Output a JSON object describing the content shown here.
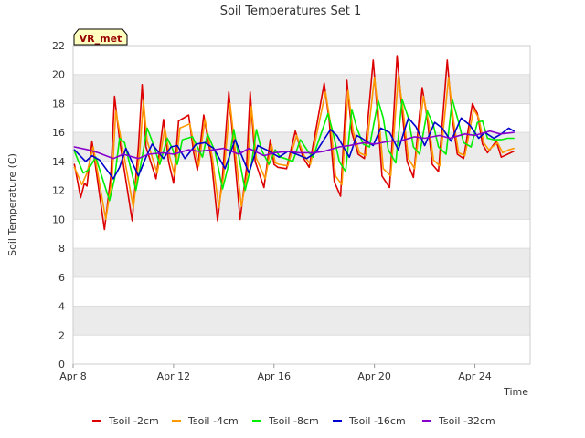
{
  "chart_data": {
    "type": "line",
    "title": "Soil Temperatures Set 1",
    "xlabel": "Time",
    "ylabel": "Soil Temperature (C)",
    "badge": "VR_met",
    "ylim": [
      0,
      22
    ],
    "yticks": [
      0,
      2,
      4,
      6,
      8,
      10,
      12,
      14,
      16,
      18,
      20,
      22
    ],
    "xlim": [
      0,
      18.2
    ],
    "xtick_labels": [
      {
        "x": 0,
        "label": "Apr 8"
      },
      {
        "x": 4,
        "label": "Apr 12"
      },
      {
        "x": 8,
        "label": "Apr 16"
      },
      {
        "x": 12,
        "label": "Apr 20"
      },
      {
        "x": 16,
        "label": "Apr 24"
      }
    ],
    "x_unit": "days after Apr 8",
    "grid": true,
    "legend": "bottom",
    "colors": {
      "background_band": "#ebebeb",
      "badge_fill": "#ffffc0",
      "badge_text": "#990000"
    },
    "series": [
      {
        "name": "Tsoil -2cm",
        "color": "#dd0000",
        "x": [
          0.05,
          0.3,
          0.45,
          0.55,
          0.75,
          1.25,
          1.5,
          1.65,
          1.85,
          2.35,
          2.6,
          2.75,
          2.9,
          3.3,
          3.6,
          3.8,
          4.0,
          4.2,
          4.6,
          4.8,
          4.95,
          5.2,
          5.5,
          5.75,
          5.95,
          6.2,
          6.65,
          6.9,
          7.05,
          7.25,
          7.6,
          7.85,
          8.0,
          8.15,
          8.5,
          8.85,
          9.15,
          9.4,
          10.0,
          10.2,
          10.4,
          10.65,
          10.9,
          11.1,
          11.35,
          11.6,
          11.95,
          12.1,
          12.3,
          12.6,
          12.9,
          13.1,
          13.3,
          13.55,
          13.9,
          14.1,
          14.3,
          14.55,
          14.9,
          15.1,
          15.3,
          15.55,
          15.9,
          16.1,
          16.3,
          16.5,
          16.85,
          17.05,
          17.3,
          17.55
        ],
        "y": [
          13.8,
          11.5,
          12.5,
          12.3,
          15.4,
          9.3,
          13.0,
          18.5,
          15.5,
          9.9,
          15.0,
          19.3,
          15.0,
          12.8,
          16.9,
          14.0,
          12.5,
          16.8,
          17.2,
          14.6,
          13.4,
          17.2,
          14.2,
          9.9,
          13.0,
          18.8,
          10.0,
          13.5,
          18.8,
          14.0,
          12.2,
          15.5,
          13.8,
          13.6,
          13.5,
          16.1,
          14.3,
          13.6,
          19.4,
          16.8,
          12.6,
          11.6,
          19.6,
          16.0,
          14.5,
          14.2,
          21.0,
          17.8,
          13.0,
          12.2,
          21.3,
          17.5,
          14.0,
          12.9,
          19.1,
          17.0,
          13.8,
          13.3,
          21.0,
          17.0,
          14.5,
          14.2,
          18.0,
          17.3,
          15.2,
          14.6,
          15.4,
          14.3,
          14.5,
          14.7
        ]
      },
      {
        "name": "Tsoil -4cm",
        "color": "#ff9900",
        "x": [
          0.05,
          0.35,
          0.55,
          0.8,
          1.3,
          1.55,
          1.7,
          1.9,
          2.4,
          2.65,
          2.8,
          2.95,
          3.35,
          3.65,
          3.85,
          4.05,
          4.25,
          4.65,
          4.85,
          5.0,
          5.25,
          5.55,
          5.8,
          6.0,
          6.25,
          6.7,
          6.95,
          7.1,
          7.3,
          7.65,
          7.9,
          8.05,
          8.2,
          8.55,
          8.9,
          9.2,
          9.45,
          10.05,
          10.25,
          10.45,
          10.7,
          10.95,
          11.15,
          11.4,
          11.65,
          12.0,
          12.15,
          12.35,
          12.65,
          12.95,
          13.15,
          13.35,
          13.6,
          13.95,
          14.15,
          14.35,
          14.6,
          14.95,
          15.15,
          15.35,
          15.6,
          15.95,
          16.15,
          16.35,
          16.55,
          16.9,
          17.1,
          17.35,
          17.55
        ],
        "y": [
          13.6,
          12.4,
          13.2,
          15.0,
          10.0,
          12.8,
          17.5,
          15.6,
          10.8,
          14.6,
          18.2,
          15.4,
          13.2,
          16.3,
          14.3,
          13.0,
          16.3,
          16.6,
          14.8,
          13.7,
          16.9,
          14.2,
          10.8,
          13.1,
          18.0,
          10.9,
          13.3,
          17.8,
          14.2,
          12.8,
          15.2,
          13.9,
          13.8,
          13.7,
          15.8,
          14.4,
          13.8,
          18.8,
          16.6,
          13.0,
          12.4,
          18.9,
          16.1,
          14.6,
          14.4,
          19.8,
          17.5,
          13.5,
          13.0,
          19.9,
          17.4,
          14.2,
          13.5,
          18.5,
          16.8,
          14.1,
          13.7,
          19.8,
          16.8,
          14.6,
          14.4,
          17.6,
          17.0,
          15.3,
          14.8,
          15.3,
          14.6,
          14.8,
          14.9
        ]
      },
      {
        "name": "Tsoil -8cm",
        "color": "#00ee00",
        "x": [
          0.05,
          0.4,
          0.6,
          0.9,
          1.45,
          1.65,
          1.85,
          2.05,
          2.5,
          2.75,
          2.95,
          3.15,
          3.45,
          3.75,
          3.95,
          4.15,
          4.35,
          4.75,
          4.95,
          5.15,
          5.35,
          5.65,
          5.95,
          6.15,
          6.4,
          6.85,
          7.1,
          7.3,
          7.5,
          7.8,
          8.05,
          8.25,
          8.45,
          8.75,
          9.05,
          9.35,
          9.55,
          10.15,
          10.35,
          10.6,
          10.85,
          11.1,
          11.3,
          11.55,
          11.8,
          12.15,
          12.35,
          12.55,
          12.85,
          13.1,
          13.35,
          13.55,
          13.8,
          14.1,
          14.35,
          14.55,
          14.85,
          15.1,
          15.35,
          15.55,
          15.85,
          16.1,
          16.3,
          16.5,
          16.75,
          17.05,
          17.3,
          17.55
        ],
        "y": [
          14.7,
          13.2,
          13.4,
          14.3,
          11.3,
          12.8,
          15.6,
          15.3,
          12.0,
          14.3,
          16.3,
          15.4,
          13.8,
          15.6,
          14.9,
          13.8,
          15.5,
          15.7,
          15.0,
          14.3,
          15.9,
          14.7,
          12.1,
          13.5,
          16.2,
          12.0,
          13.8,
          16.2,
          14.8,
          13.8,
          14.8,
          14.3,
          14.2,
          14.0,
          15.5,
          14.7,
          14.3,
          17.3,
          16.0,
          14.0,
          13.3,
          17.6,
          16.3,
          15.2,
          15.0,
          18.2,
          17.0,
          14.8,
          13.9,
          18.3,
          17.0,
          15.0,
          14.5,
          17.5,
          16.5,
          15.0,
          14.5,
          18.3,
          16.7,
          15.3,
          15.0,
          16.7,
          16.8,
          15.6,
          15.5,
          15.5,
          15.6,
          15.6
        ]
      },
      {
        "name": "Tsoil -16cm",
        "color": "#0000cc",
        "x": [
          0.05,
          0.5,
          0.75,
          1.05,
          1.6,
          1.85,
          2.1,
          2.6,
          2.9,
          3.15,
          3.6,
          3.9,
          4.15,
          4.45,
          4.9,
          5.25,
          5.6,
          6.05,
          6.45,
          7.0,
          7.35,
          7.7,
          8.2,
          8.55,
          8.9,
          9.3,
          9.65,
          10.25,
          10.5,
          11.0,
          11.3,
          11.5,
          11.95,
          12.25,
          12.6,
          12.95,
          13.35,
          13.65,
          14.0,
          14.4,
          14.7,
          15.05,
          15.45,
          15.8,
          16.15,
          16.4,
          16.75,
          17.05,
          17.35,
          17.55
        ],
        "y": [
          14.8,
          14.0,
          14.4,
          14.1,
          12.8,
          13.6,
          14.9,
          13.0,
          14.3,
          15.2,
          14.2,
          15.0,
          15.1,
          14.2,
          15.2,
          15.3,
          14.9,
          13.5,
          15.5,
          13.2,
          15.1,
          14.8,
          14.3,
          14.7,
          14.5,
          14.2,
          14.6,
          16.2,
          15.8,
          14.3,
          15.8,
          15.6,
          15.1,
          16.3,
          16.0,
          14.8,
          17.0,
          16.4,
          15.1,
          16.7,
          16.3,
          15.4,
          17.0,
          16.5,
          15.6,
          16.0,
          15.6,
          15.9,
          16.3,
          16.1
        ]
      },
      {
        "name": "Tsoil -32cm",
        "color": "#8800cc",
        "x": [
          0.05,
          0.6,
          1.0,
          1.6,
          2.0,
          2.6,
          3.0,
          3.6,
          4.0,
          4.6,
          5.0,
          5.6,
          6.0,
          6.6,
          7.0,
          7.6,
          8.0,
          8.6,
          9.0,
          9.6,
          10.0,
          10.6,
          11.0,
          11.6,
          12.0,
          12.6,
          13.0,
          13.6,
          14.0,
          14.6,
          15.0,
          15.6,
          16.0,
          16.6,
          17.0,
          17.55
        ],
        "y": [
          15.0,
          14.8,
          14.6,
          14.2,
          14.5,
          14.2,
          14.5,
          14.6,
          14.5,
          14.8,
          14.7,
          14.8,
          14.9,
          14.5,
          14.9,
          14.4,
          14.6,
          14.7,
          14.6,
          14.6,
          14.7,
          15.0,
          15.1,
          15.3,
          15.2,
          15.4,
          15.4,
          15.7,
          15.6,
          15.8,
          15.6,
          15.9,
          15.8,
          16.1,
          15.9,
          16.0
        ]
      }
    ]
  }
}
